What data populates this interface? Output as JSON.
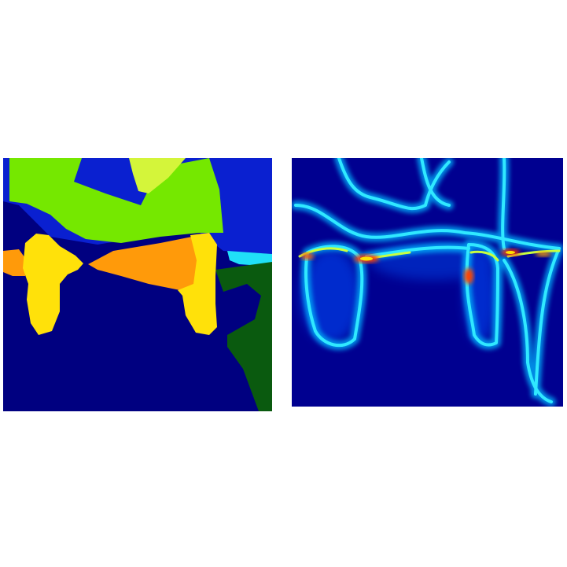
{
  "figure": {
    "panels": [
      {
        "kind": "segmentation-mask",
        "background_color": "#000080",
        "region_colors": [
          "#0a20d0",
          "#75e800",
          "#d4f53a",
          "#ffe10a",
          "#ff9a0a",
          "#20e0f8",
          "#0a5a0f"
        ]
      },
      {
        "kind": "boundary-heatmap",
        "background_color": "#000090",
        "colormap": [
          "#000090",
          "#0040ff",
          "#00c8ff",
          "#80ff80",
          "#ffe000",
          "#ff3000"
        ]
      }
    ]
  }
}
